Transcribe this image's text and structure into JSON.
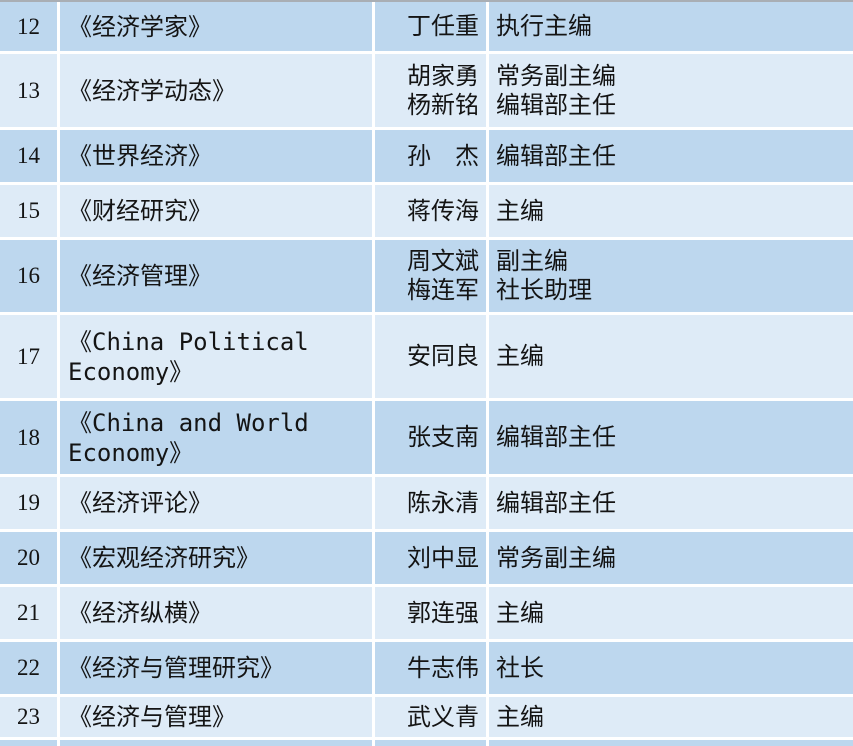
{
  "colors": {
    "row_dark": "#bdd7ee",
    "row_light": "#deebf7",
    "gridline": "#ffffff",
    "top_edge": "#a9aeb4",
    "text": "#141414"
  },
  "table": {
    "rows": [
      {
        "num": "12",
        "journal": "《经济学家》",
        "persons": [
          {
            "name": "丁任重",
            "title": "执行主编"
          }
        ]
      },
      {
        "num": "13",
        "journal": "《经济学动态》",
        "persons": [
          {
            "name": "胡家勇",
            "title": "常务副主编"
          },
          {
            "name": "杨新铭",
            "title": "编辑部主任"
          }
        ]
      },
      {
        "num": "14",
        "journal": "《世界经济》",
        "persons": [
          {
            "name": "孙　杰",
            "title": "编辑部主任"
          }
        ]
      },
      {
        "num": "15",
        "journal": "《财经研究》",
        "persons": [
          {
            "name": "蒋传海",
            "title": "主编"
          }
        ]
      },
      {
        "num": "16",
        "journal": "《经济管理》",
        "persons": [
          {
            "name": "周文斌",
            "title": "副主编"
          },
          {
            "name": "梅连军",
            "title": "社长助理"
          }
        ]
      },
      {
        "num": "17",
        "journal": "《China Political\nEconomy》",
        "persons": [
          {
            "name": "安同良",
            "title": "主编"
          }
        ]
      },
      {
        "num": "18",
        "journal": "《China and World\nEconomy》",
        "persons": [
          {
            "name": "张支南",
            "title": "编辑部主任"
          }
        ]
      },
      {
        "num": "19",
        "journal": "《经济评论》",
        "persons": [
          {
            "name": "陈永清",
            "title": "编辑部主任"
          }
        ]
      },
      {
        "num": "20",
        "journal": "《宏观经济研究》",
        "persons": [
          {
            "name": "刘中显",
            "title": "常务副主编"
          }
        ]
      },
      {
        "num": "21",
        "journal": "《经济纵横》",
        "persons": [
          {
            "name": "郭连强",
            "title": "主编"
          }
        ]
      },
      {
        "num": "22",
        "journal": "《经济与管理研究》",
        "persons": [
          {
            "name": "牛志伟",
            "title": "社长"
          }
        ]
      },
      {
        "num": "23",
        "journal": "《经济与管理》",
        "persons": [
          {
            "name": "武义青",
            "title": "主编"
          }
        ]
      }
    ]
  }
}
